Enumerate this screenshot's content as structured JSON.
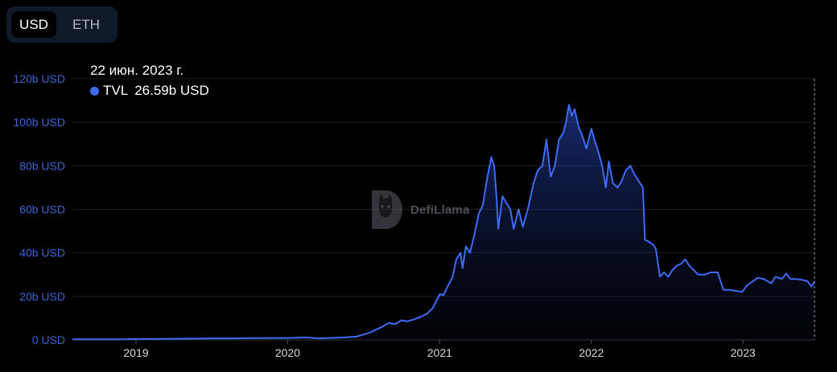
{
  "currency_toggle": {
    "options": [
      "USD",
      "ETH"
    ],
    "selected": "USD"
  },
  "tooltip": {
    "date": "22 июн. 2023 г.",
    "series_name": "TVL",
    "value_text": "26.59b USD"
  },
  "watermark": {
    "text": "DefiLlama"
  },
  "colors": {
    "line": "#3e6af6",
    "background": "#000000",
    "axis_text": "#3b64d6",
    "grid": "#1c1f26"
  },
  "chart_data": {
    "type": "area",
    "title": "",
    "xlabel": "",
    "ylabel": "",
    "ylim": [
      0,
      120
    ],
    "y_ticks": [
      {
        "value": 0,
        "label": "0 USD"
      },
      {
        "value": 20,
        "label": "20b USD"
      },
      {
        "value": 40,
        "label": "40b USD"
      },
      {
        "value": 60,
        "label": "60b USD"
      },
      {
        "value": 80,
        "label": "80b USD"
      },
      {
        "value": 100,
        "label": "100b USD"
      },
      {
        "value": 120,
        "label": "120b USD"
      }
    ],
    "xlim": [
      "2018-08-01",
      "2023-06-22"
    ],
    "x_ticks": [
      {
        "date": "2019-01-01",
        "label": "2019"
      },
      {
        "date": "2020-01-01",
        "label": "2020"
      },
      {
        "date": "2021-01-01",
        "label": "2021"
      },
      {
        "date": "2022-01-01",
        "label": "2022"
      },
      {
        "date": "2023-01-01",
        "label": "2023"
      }
    ],
    "grid": true,
    "crosshair_date": "2023-06-22",
    "series": [
      {
        "name": "TVL",
        "unit": "billion USD",
        "points": [
          [
            "2018-08-01",
            0.3
          ],
          [
            "2018-10-01",
            0.3
          ],
          [
            "2018-12-01",
            0.3
          ],
          [
            "2019-01-01",
            0.4
          ],
          [
            "2019-02-15",
            0.4
          ],
          [
            "2019-04-01",
            0.5
          ],
          [
            "2019-06-01",
            0.6
          ],
          [
            "2019-07-01",
            0.7
          ],
          [
            "2019-09-01",
            0.7
          ],
          [
            "2019-10-15",
            0.8
          ],
          [
            "2019-12-01",
            0.8
          ],
          [
            "2020-01-01",
            0.9
          ],
          [
            "2020-02-15",
            1.1
          ],
          [
            "2020-03-15",
            0.7
          ],
          [
            "2020-04-15",
            0.9
          ],
          [
            "2020-05-15",
            1.1
          ],
          [
            "2020-06-15",
            1.5
          ],
          [
            "2020-07-15",
            3.2
          ],
          [
            "2020-08-15",
            6.0
          ],
          [
            "2020-09-01",
            7.8
          ],
          [
            "2020-09-15",
            7.2
          ],
          [
            "2020-10-01",
            9.0
          ],
          [
            "2020-10-15",
            8.5
          ],
          [
            "2020-11-01",
            9.5
          ],
          [
            "2020-11-15",
            10.5
          ],
          [
            "2020-12-01",
            12.0
          ],
          [
            "2020-12-15",
            14.5
          ],
          [
            "2021-01-01",
            21.0
          ],
          [
            "2021-01-10",
            20.5
          ],
          [
            "2021-01-20",
            24.5
          ],
          [
            "2021-02-01",
            29.0
          ],
          [
            "2021-02-10",
            37.0
          ],
          [
            "2021-02-20",
            40.0
          ],
          [
            "2021-02-25",
            33.0
          ],
          [
            "2021-03-05",
            43.0
          ],
          [
            "2021-03-15",
            40.0
          ],
          [
            "2021-03-25",
            48.0
          ],
          [
            "2021-04-05",
            58.0
          ],
          [
            "2021-04-15",
            62.0
          ],
          [
            "2021-04-25",
            74.0
          ],
          [
            "2021-05-05",
            84.0
          ],
          [
            "2021-05-12",
            80.0
          ],
          [
            "2021-05-18",
            65.0
          ],
          [
            "2021-05-22",
            51.0
          ],
          [
            "2021-06-01",
            66.0
          ],
          [
            "2021-06-10",
            63.0
          ],
          [
            "2021-06-20",
            60.0
          ],
          [
            "2021-06-28",
            51.0
          ],
          [
            "2021-07-10",
            60.0
          ],
          [
            "2021-07-20",
            52.0
          ],
          [
            "2021-08-01",
            60.0
          ],
          [
            "2021-08-15",
            72.0
          ],
          [
            "2021-08-25",
            78.0
          ],
          [
            "2021-09-05",
            80.0
          ],
          [
            "2021-09-15",
            92.0
          ],
          [
            "2021-09-25",
            75.0
          ],
          [
            "2021-10-05",
            80.0
          ],
          [
            "2021-10-15",
            92.0
          ],
          [
            "2021-10-25",
            95.0
          ],
          [
            "2021-11-01",
            100.0
          ],
          [
            "2021-11-08",
            108.0
          ],
          [
            "2021-11-15",
            103.0
          ],
          [
            "2021-11-22",
            106.0
          ],
          [
            "2021-12-01",
            98.0
          ],
          [
            "2021-12-10",
            94.0
          ],
          [
            "2021-12-20",
            88.0
          ],
          [
            "2022-01-01",
            97.0
          ],
          [
            "2022-01-10",
            91.0
          ],
          [
            "2022-01-20",
            85.0
          ],
          [
            "2022-01-28",
            79.0
          ],
          [
            "2022-02-05",
            70.0
          ],
          [
            "2022-02-12",
            82.0
          ],
          [
            "2022-02-22",
            72.0
          ],
          [
            "2022-03-05",
            70.0
          ],
          [
            "2022-03-15",
            73.0
          ],
          [
            "2022-03-25",
            78.0
          ],
          [
            "2022-04-05",
            80.0
          ],
          [
            "2022-04-15",
            76.0
          ],
          [
            "2022-04-25",
            73.0
          ],
          [
            "2022-05-05",
            70.0
          ],
          [
            "2022-05-10",
            46.0
          ],
          [
            "2022-05-20",
            45.0
          ],
          [
            "2022-05-28",
            44.0
          ],
          [
            "2022-06-05",
            42.0
          ],
          [
            "2022-06-15",
            29.0
          ],
          [
            "2022-06-25",
            31.0
          ],
          [
            "2022-07-05",
            29.0
          ],
          [
            "2022-07-15",
            32.0
          ],
          [
            "2022-07-25",
            34.0
          ],
          [
            "2022-08-05",
            35.0
          ],
          [
            "2022-08-15",
            37.0
          ],
          [
            "2022-08-25",
            34.0
          ],
          [
            "2022-09-05",
            32.0
          ],
          [
            "2022-09-15",
            30.0
          ],
          [
            "2022-10-01",
            30.0
          ],
          [
            "2022-10-15",
            31.0
          ],
          [
            "2022-11-01",
            31.0
          ],
          [
            "2022-11-08",
            27.0
          ],
          [
            "2022-11-15",
            23.0
          ],
          [
            "2022-12-01",
            23.0
          ],
          [
            "2022-12-15",
            22.5
          ],
          [
            "2022-12-30",
            22.0
          ],
          [
            "2023-01-10",
            25.0
          ],
          [
            "2023-01-25",
            27.0
          ],
          [
            "2023-02-05",
            28.5
          ],
          [
            "2023-02-20",
            28.0
          ],
          [
            "2023-03-10",
            26.0
          ],
          [
            "2023-03-20",
            29.0
          ],
          [
            "2023-04-05",
            28.0
          ],
          [
            "2023-04-15",
            30.5
          ],
          [
            "2023-04-25",
            28.0
          ],
          [
            "2023-05-10",
            28.0
          ],
          [
            "2023-05-25",
            27.5
          ],
          [
            "2023-06-05",
            27.0
          ],
          [
            "2023-06-15",
            24.5
          ],
          [
            "2023-06-22",
            26.59
          ]
        ]
      }
    ]
  }
}
